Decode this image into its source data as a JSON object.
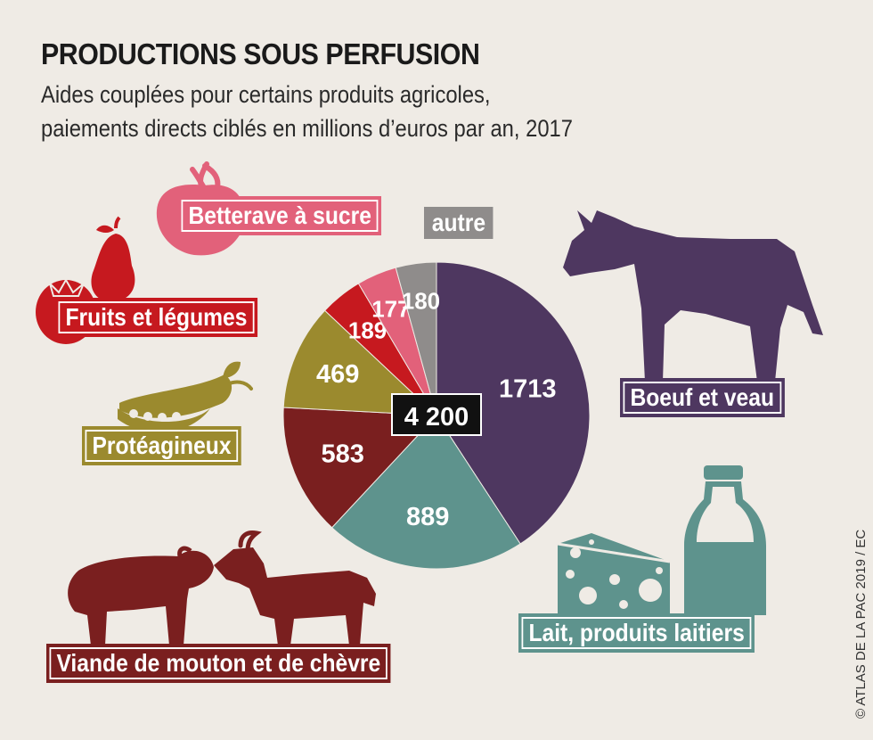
{
  "title": "PRODUCTIONS SOUS PERFUSION",
  "subtitle_line1": "Aides couplées pour certains produits agricoles,",
  "subtitle_line2": "paiements directs ciblés en millions d’euros par an, 2017",
  "credit": "© ATLAS DE LA PAC 2019 / EC",
  "icons": [
    "beet-icon",
    "pear-icon",
    "tomato-icon",
    "pea-pod-icon",
    "cow-icon",
    "sheep-icon",
    "goat-icon",
    "cheese-icon",
    "milk-bottle-icon"
  ],
  "chart_data": {
    "type": "pie",
    "total_label": "4 200",
    "total": 4200,
    "slices": [
      {
        "name": "Boeuf et veau",
        "value": 1713,
        "label": "1713",
        "color": "#4e3760"
      },
      {
        "name": "Lait, produits laitiers",
        "value": 889,
        "label": "889",
        "color": "#5e938d"
      },
      {
        "name": "Viande de mouton et de chèvre",
        "value": 583,
        "label": "583",
        "color": "#7a1f1f"
      },
      {
        "name": "Protéagineux",
        "value": 469,
        "label": "469",
        "color": "#9b8a2e"
      },
      {
        "name": "Fruits et légumes",
        "value": 189,
        "label": "189",
        "color": "#c6191f"
      },
      {
        "name": "Betterave à sucre",
        "value": 177,
        "label": "177",
        "color": "#e2617a"
      },
      {
        "name": "autre",
        "value": 180,
        "label": "180",
        "color": "#8f8c8b"
      }
    ]
  }
}
